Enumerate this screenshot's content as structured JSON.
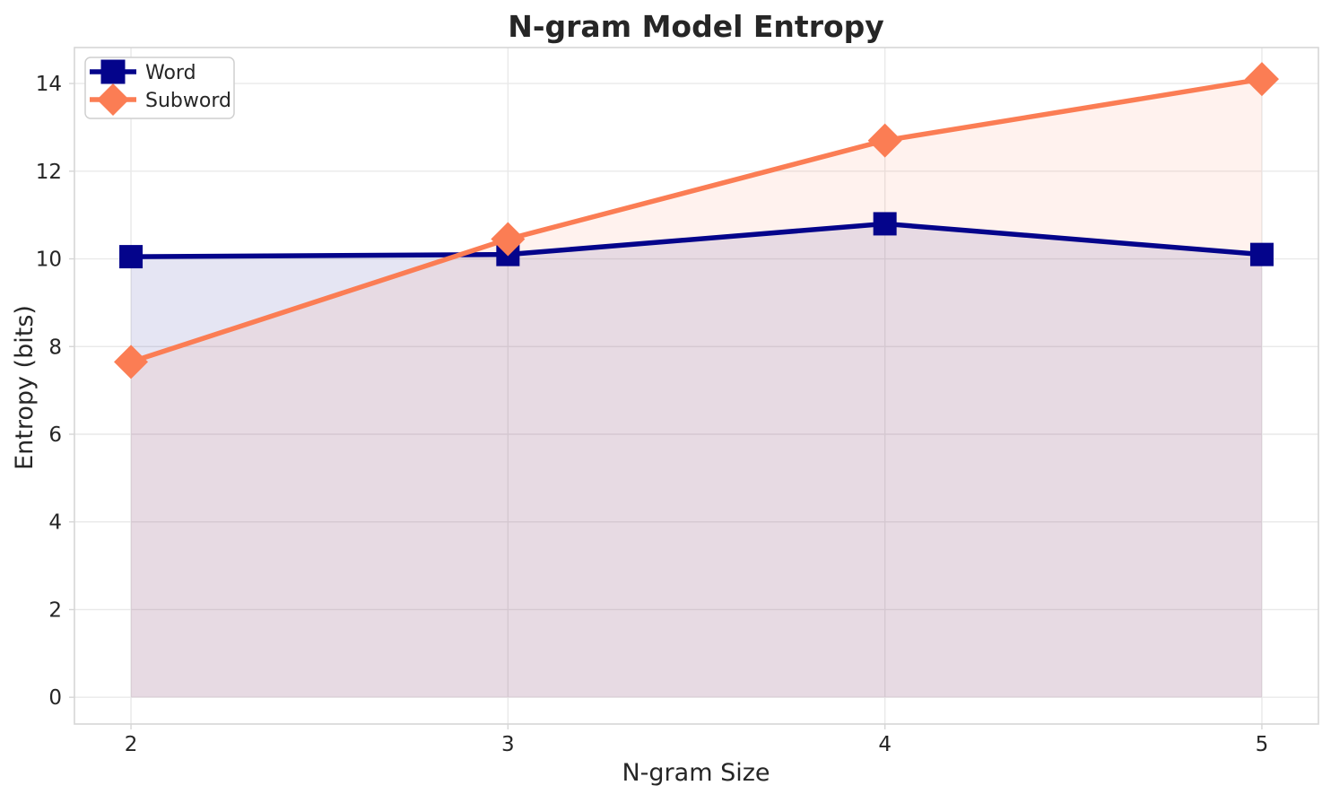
{
  "chart_data": {
    "type": "line",
    "title": "N-gram Model Entropy",
    "xlabel": "N-gram Size",
    "ylabel": "Entropy (bits)",
    "x": [
      2,
      3,
      4,
      5
    ],
    "series": [
      {
        "name": "Word",
        "values": [
          10.05,
          10.1,
          10.8,
          10.1
        ],
        "color": "#04048B",
        "marker": "square",
        "fill_to_zero": true,
        "fill_opacity": 0.1
      },
      {
        "name": "Subword",
        "values": [
          7.65,
          10.45,
          12.7,
          14.1
        ],
        "color": "#FB7D54",
        "marker": "diamond",
        "fill_to_zero": true,
        "fill_opacity": 0.1
      }
    ],
    "xticks": [
      2,
      3,
      4,
      5
    ],
    "yticks": [
      0,
      2,
      4,
      6,
      8,
      10,
      12,
      14
    ],
    "xlim": [
      1.85,
      5.15
    ],
    "ylim": [
      -0.61,
      14.82
    ],
    "grid": true,
    "legend": {
      "position": "upper left",
      "entries": [
        "Word",
        "Subword"
      ]
    },
    "colors": {
      "grid": "#E9E9E9",
      "spine": "#D6D6D6",
      "text": "#262626",
      "background": "#FFFFFF"
    }
  }
}
